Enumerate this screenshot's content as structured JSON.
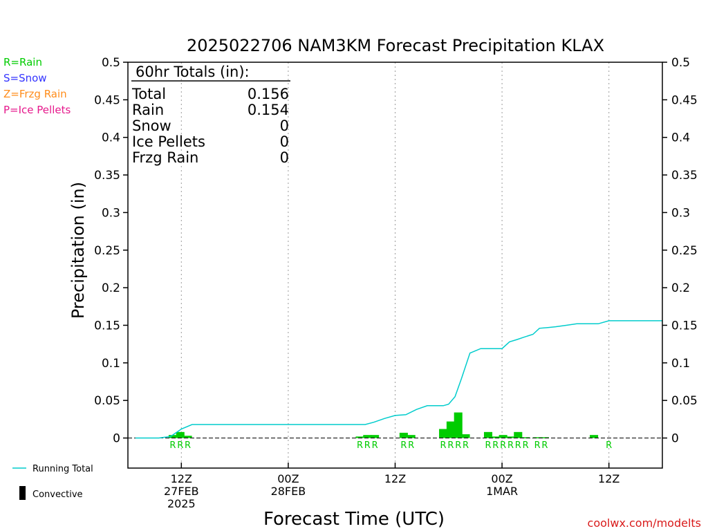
{
  "chart_data": {
    "type": "bar",
    "title": "2025022706 NAM3KM Forecast Precipitation KLAX",
    "xlabel": "Forecast Time (UTC)",
    "ylabel": "Precipitation (in)",
    "ylim": [
      -0.04,
      0.5
    ],
    "yticks": [
      0,
      0.05,
      0.1,
      0.15,
      0.2,
      0.25,
      0.3,
      0.35,
      0.4,
      0.45,
      0.5
    ],
    "ytick_labels": [
      "0",
      "0.05",
      "0.1",
      "0.15",
      "0.2",
      "0.25",
      "0.3",
      "0.35",
      "0.4",
      "0.45",
      "0.5"
    ],
    "xlim": [
      7,
      57
    ],
    "xticks": [
      {
        "x": 12,
        "line1": "12Z",
        "line2": "27FEB",
        "line3": "2025"
      },
      {
        "x": 22,
        "line1": "00Z",
        "line2": "28FEB",
        "line3": ""
      },
      {
        "x": 32,
        "line1": "12Z",
        "line2": "",
        "line3": ""
      },
      {
        "x": 42,
        "line1": "00Z",
        "line2": "1MAR",
        "line3": ""
      },
      {
        "x": 52,
        "line1": "12Z",
        "line2": "",
        "line3": ""
      }
    ],
    "grid": "vertical-dotted",
    "legend": "left",
    "precip_type_legend": [
      {
        "text": "R=Rain",
        "color": "#00cc00"
      },
      {
        "text": "S=Snow",
        "color": "#3333ff"
      },
      {
        "text": "Z=Frzg Rain",
        "color": "#ff8c1a"
      },
      {
        "text": "P=Ice Pellets",
        "color": "#e6198c"
      }
    ],
    "series_legend": [
      {
        "name": "Running Total",
        "color": "#00cccc"
      },
      {
        "name": "Convective",
        "color": "#000000"
      }
    ],
    "totals_box": {
      "header": "60hr Totals (in):",
      "rows": [
        {
          "label": "Total",
          "value": "0.156"
        },
        {
          "label": "Rain",
          "value": "0.154"
        },
        {
          "label": "Snow",
          "value": "0"
        },
        {
          "label": "Ice Pellets",
          "value": "0"
        },
        {
          "label": "Frzg Rain",
          "value": "0"
        }
      ]
    },
    "bars": {
      "color": "#00cc00",
      "type_label": "R",
      "x": [
        11.2,
        11.9,
        12.6,
        28.7,
        29.4,
        30.1,
        32.8,
        33.5,
        36.5,
        37.2,
        37.9,
        38.6,
        40.7,
        41.4,
        42.1,
        42.8,
        43.5,
        44.2,
        45.3,
        46.0,
        49.2,
        49.9,
        50.6,
        52.0
      ],
      "values": [
        0.004,
        0.008,
        0.003,
        0.002,
        0.004,
        0.004,
        0.007,
        0.004,
        0.012,
        0.022,
        0.034,
        0.005,
        0.008,
        0.002,
        0.004,
        0.002,
        0.008,
        0.001,
        0.001,
        0.001,
        0.0,
        0.0,
        0.004,
        0.0
      ],
      "labeled_x": [
        11.2,
        11.9,
        12.6,
        28.7,
        29.4,
        30.1,
        32.8,
        33.5,
        36.5,
        37.2,
        37.9,
        38.6,
        40.7,
        41.4,
        42.1,
        42.8,
        43.5,
        44.2,
        45.3,
        46.0,
        52.0
      ]
    },
    "running_total": {
      "color": "#00cccc",
      "x": [
        7.7,
        9.9,
        11.0,
        12.0,
        13.0,
        14.0,
        22.0,
        29.2,
        30.0,
        31.0,
        32.0,
        33.0,
        34.0,
        35.0,
        36.0,
        36.5,
        37.0,
        37.6,
        38.2,
        39.0,
        40.0,
        41.0,
        42.0,
        42.7,
        43.4,
        44.0,
        44.9,
        45.5,
        46.3,
        47.0,
        48.0,
        49.0,
        50.4,
        51.0,
        52.0,
        53.0,
        55.0,
        57.0
      ],
      "values": [
        0.0,
        0.0,
        0.002,
        0.012,
        0.018,
        0.018,
        0.018,
        0.018,
        0.021,
        0.026,
        0.03,
        0.031,
        0.038,
        0.043,
        0.043,
        0.043,
        0.045,
        0.055,
        0.079,
        0.113,
        0.119,
        0.119,
        0.119,
        0.128,
        0.131,
        0.134,
        0.138,
        0.146,
        0.147,
        0.148,
        0.15,
        0.152,
        0.152,
        0.152,
        0.156,
        0.156,
        0.156,
        0.156
      ]
    },
    "watermark": "coolwx.com/modelts"
  }
}
